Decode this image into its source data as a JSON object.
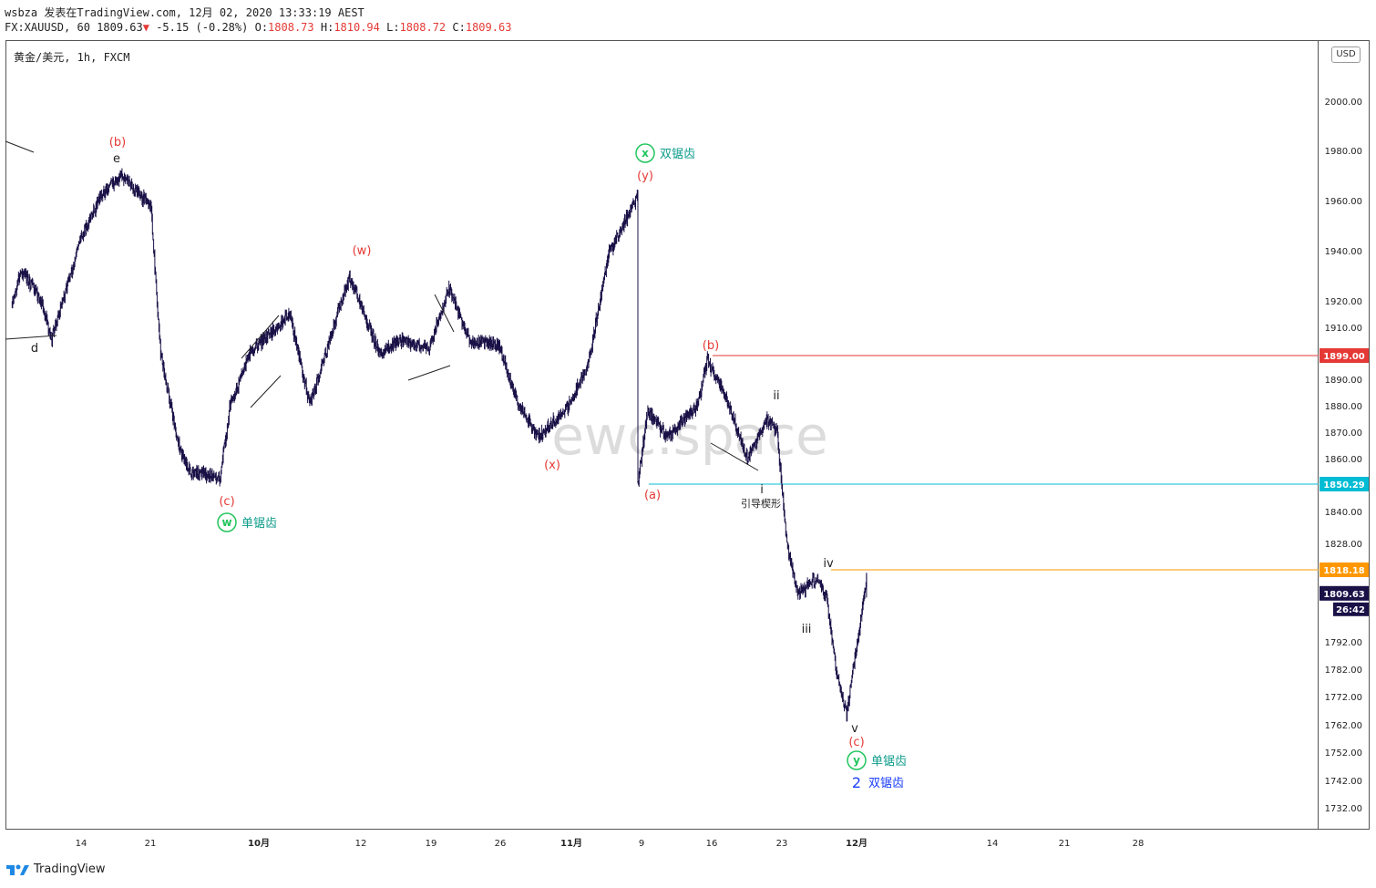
{
  "header": {
    "line1": "wsbza 发表在TradingView.com, 12月 02, 2020 13:33:19 AEST",
    "symbol_prefix": "FX:XAUUSD, 60",
    "last": "1809.63",
    "arrow": "▼",
    "change": "-5.15 (-0.28%)",
    "o_label": "O:",
    "o_value": "1808.73",
    "h_label": "H:",
    "h_value": "1810.94",
    "l_label": "L:",
    "l_value": "1808.72",
    "c_label": "C:",
    "c_value": "1809.63"
  },
  "symbol_title": "黄金/美元, 1h, FXCM",
  "currency_button": "USD",
  "brand": "TradingView",
  "watermark": "ewc.space",
  "colors": {
    "candles": "#1a1147",
    "red_level": "#e53935",
    "cyan_level": "#00bcd4",
    "orange_level": "#ff9800",
    "wave_red": "#e53935",
    "wave_green": "#22c55e",
    "wave_teal": "#0f9d8c",
    "wave_blue": "#1e40ff"
  },
  "chart_data": {
    "type": "candlestick",
    "symbol": "XAUUSD",
    "interval": "1h",
    "ylim": [
      1725,
      2015
    ],
    "x_ticks": [
      "14",
      "21",
      "10月",
      "12",
      "19",
      "26",
      "11月",
      "9",
      "16",
      "23",
      "12月",
      "14",
      "21",
      "28"
    ],
    "y_ticks": [
      "2000.00",
      "1980.00",
      "1960.00",
      "1940.00",
      "1920.00",
      "1910.00",
      "1890.00",
      "1880.00",
      "1870.00",
      "1860.00",
      "1840.00",
      "1828.00",
      "1792.00",
      "1782.00",
      "1772.00",
      "1762.00",
      "1752.00",
      "1742.00",
      "1732.00"
    ],
    "last_price": "1809.63",
    "countdown": "26:42",
    "levels": [
      {
        "value": 1899.0,
        "label": "1899.00",
        "color": "#e53935"
      },
      {
        "value": 1850.29,
        "label": "1850.29",
        "color": "#00bcd4"
      },
      {
        "value": 1818.18,
        "label": "1818.18",
        "color": "#ff9800"
      }
    ],
    "path_points": [
      {
        "x": "Sep 7",
        "y": 1918
      },
      {
        "x": "Sep 8",
        "y": 1932
      },
      {
        "x": "Sep 10",
        "y": 1920
      },
      {
        "x": "Sep 11",
        "y": 1905
      },
      {
        "x": "Sep 14",
        "y": 1945
      },
      {
        "x": "Sep 16",
        "y": 1962
      },
      {
        "x": "Sep 18",
        "y": 1970
      },
      {
        "x": "Sep 21",
        "y": 1958
      },
      {
        "x": "Sep 22",
        "y": 1900
      },
      {
        "x": "Sep 24",
        "y": 1862
      },
      {
        "x": "Sep 25",
        "y": 1855
      },
      {
        "x": "Sep 28",
        "y": 1853
      },
      {
        "x": "Sep 29",
        "y": 1880
      },
      {
        "x": "Oct 1",
        "y": 1900
      },
      {
        "x": "Oct 5",
        "y": 1915
      },
      {
        "x": "Oct 7",
        "y": 1880
      },
      {
        "x": "Oct 9",
        "y": 1905
      },
      {
        "x": "Oct 11",
        "y": 1930
      },
      {
        "x": "Oct 14",
        "y": 1900
      },
      {
        "x": "Oct 16",
        "y": 1905
      },
      {
        "x": "Oct 19",
        "y": 1902
      },
      {
        "x": "Oct 21",
        "y": 1925
      },
      {
        "x": "Oct 23",
        "y": 1905
      },
      {
        "x": "Oct 26",
        "y": 1903
      },
      {
        "x": "Oct 28",
        "y": 1880
      },
      {
        "x": "Oct 30",
        "y": 1868
      },
      {
        "x": "Nov 2",
        "y": 1880
      },
      {
        "x": "Nov 4",
        "y": 1895
      },
      {
        "x": "Nov 6",
        "y": 1938
      },
      {
        "x": "Nov 9",
        "y": 1962
      },
      {
        "x": "Nov 9",
        "y": 1851
      },
      {
        "x": "Nov 10",
        "y": 1878
      },
      {
        "x": "Nov 12",
        "y": 1868
      },
      {
        "x": "Nov 15",
        "y": 1880
      },
      {
        "x": "Nov 16",
        "y": 1897
      },
      {
        "x": "Nov 18",
        "y": 1882
      },
      {
        "x": "Nov 20",
        "y": 1860
      },
      {
        "x": "Nov 22",
        "y": 1875
      },
      {
        "x": "Nov 23",
        "y": 1870
      },
      {
        "x": "Nov 24",
        "y": 1828
      },
      {
        "x": "Nov 25",
        "y": 1810
      },
      {
        "x": "Nov 26",
        "y": 1812
      },
      {
        "x": "Nov 27",
        "y": 1815
      },
      {
        "x": "Nov 28",
        "y": 1808
      },
      {
        "x": "Nov 29",
        "y": 1780
      },
      {
        "x": "Nov 30",
        "y": 1766
      },
      {
        "x": "Dec 1",
        "y": 1790
      },
      {
        "x": "Dec 2",
        "y": 1815
      },
      {
        "x": "Dec 2",
        "y": 1809.63
      }
    ]
  },
  "annotations": {
    "b_top": "(b)",
    "e": "e",
    "d": "d",
    "c_low": "(c)",
    "w_circle": "w",
    "w_text": "单锯齿",
    "w_paren": "(w)",
    "x_paren": "(x)",
    "x_circle": "x",
    "x_text": "双锯齿",
    "y_paren": "(y)",
    "a_paren": "(a)",
    "b_paren": "(b)",
    "ii": "ii",
    "i": "i",
    "leading_wedge": "引导楔形",
    "iii": "iii",
    "iv": "iv",
    "v": "v",
    "c_paren": "(c)",
    "y_circle": "y",
    "y_text": "单锯齿",
    "two": "2",
    "two_text": "双锯齿"
  }
}
